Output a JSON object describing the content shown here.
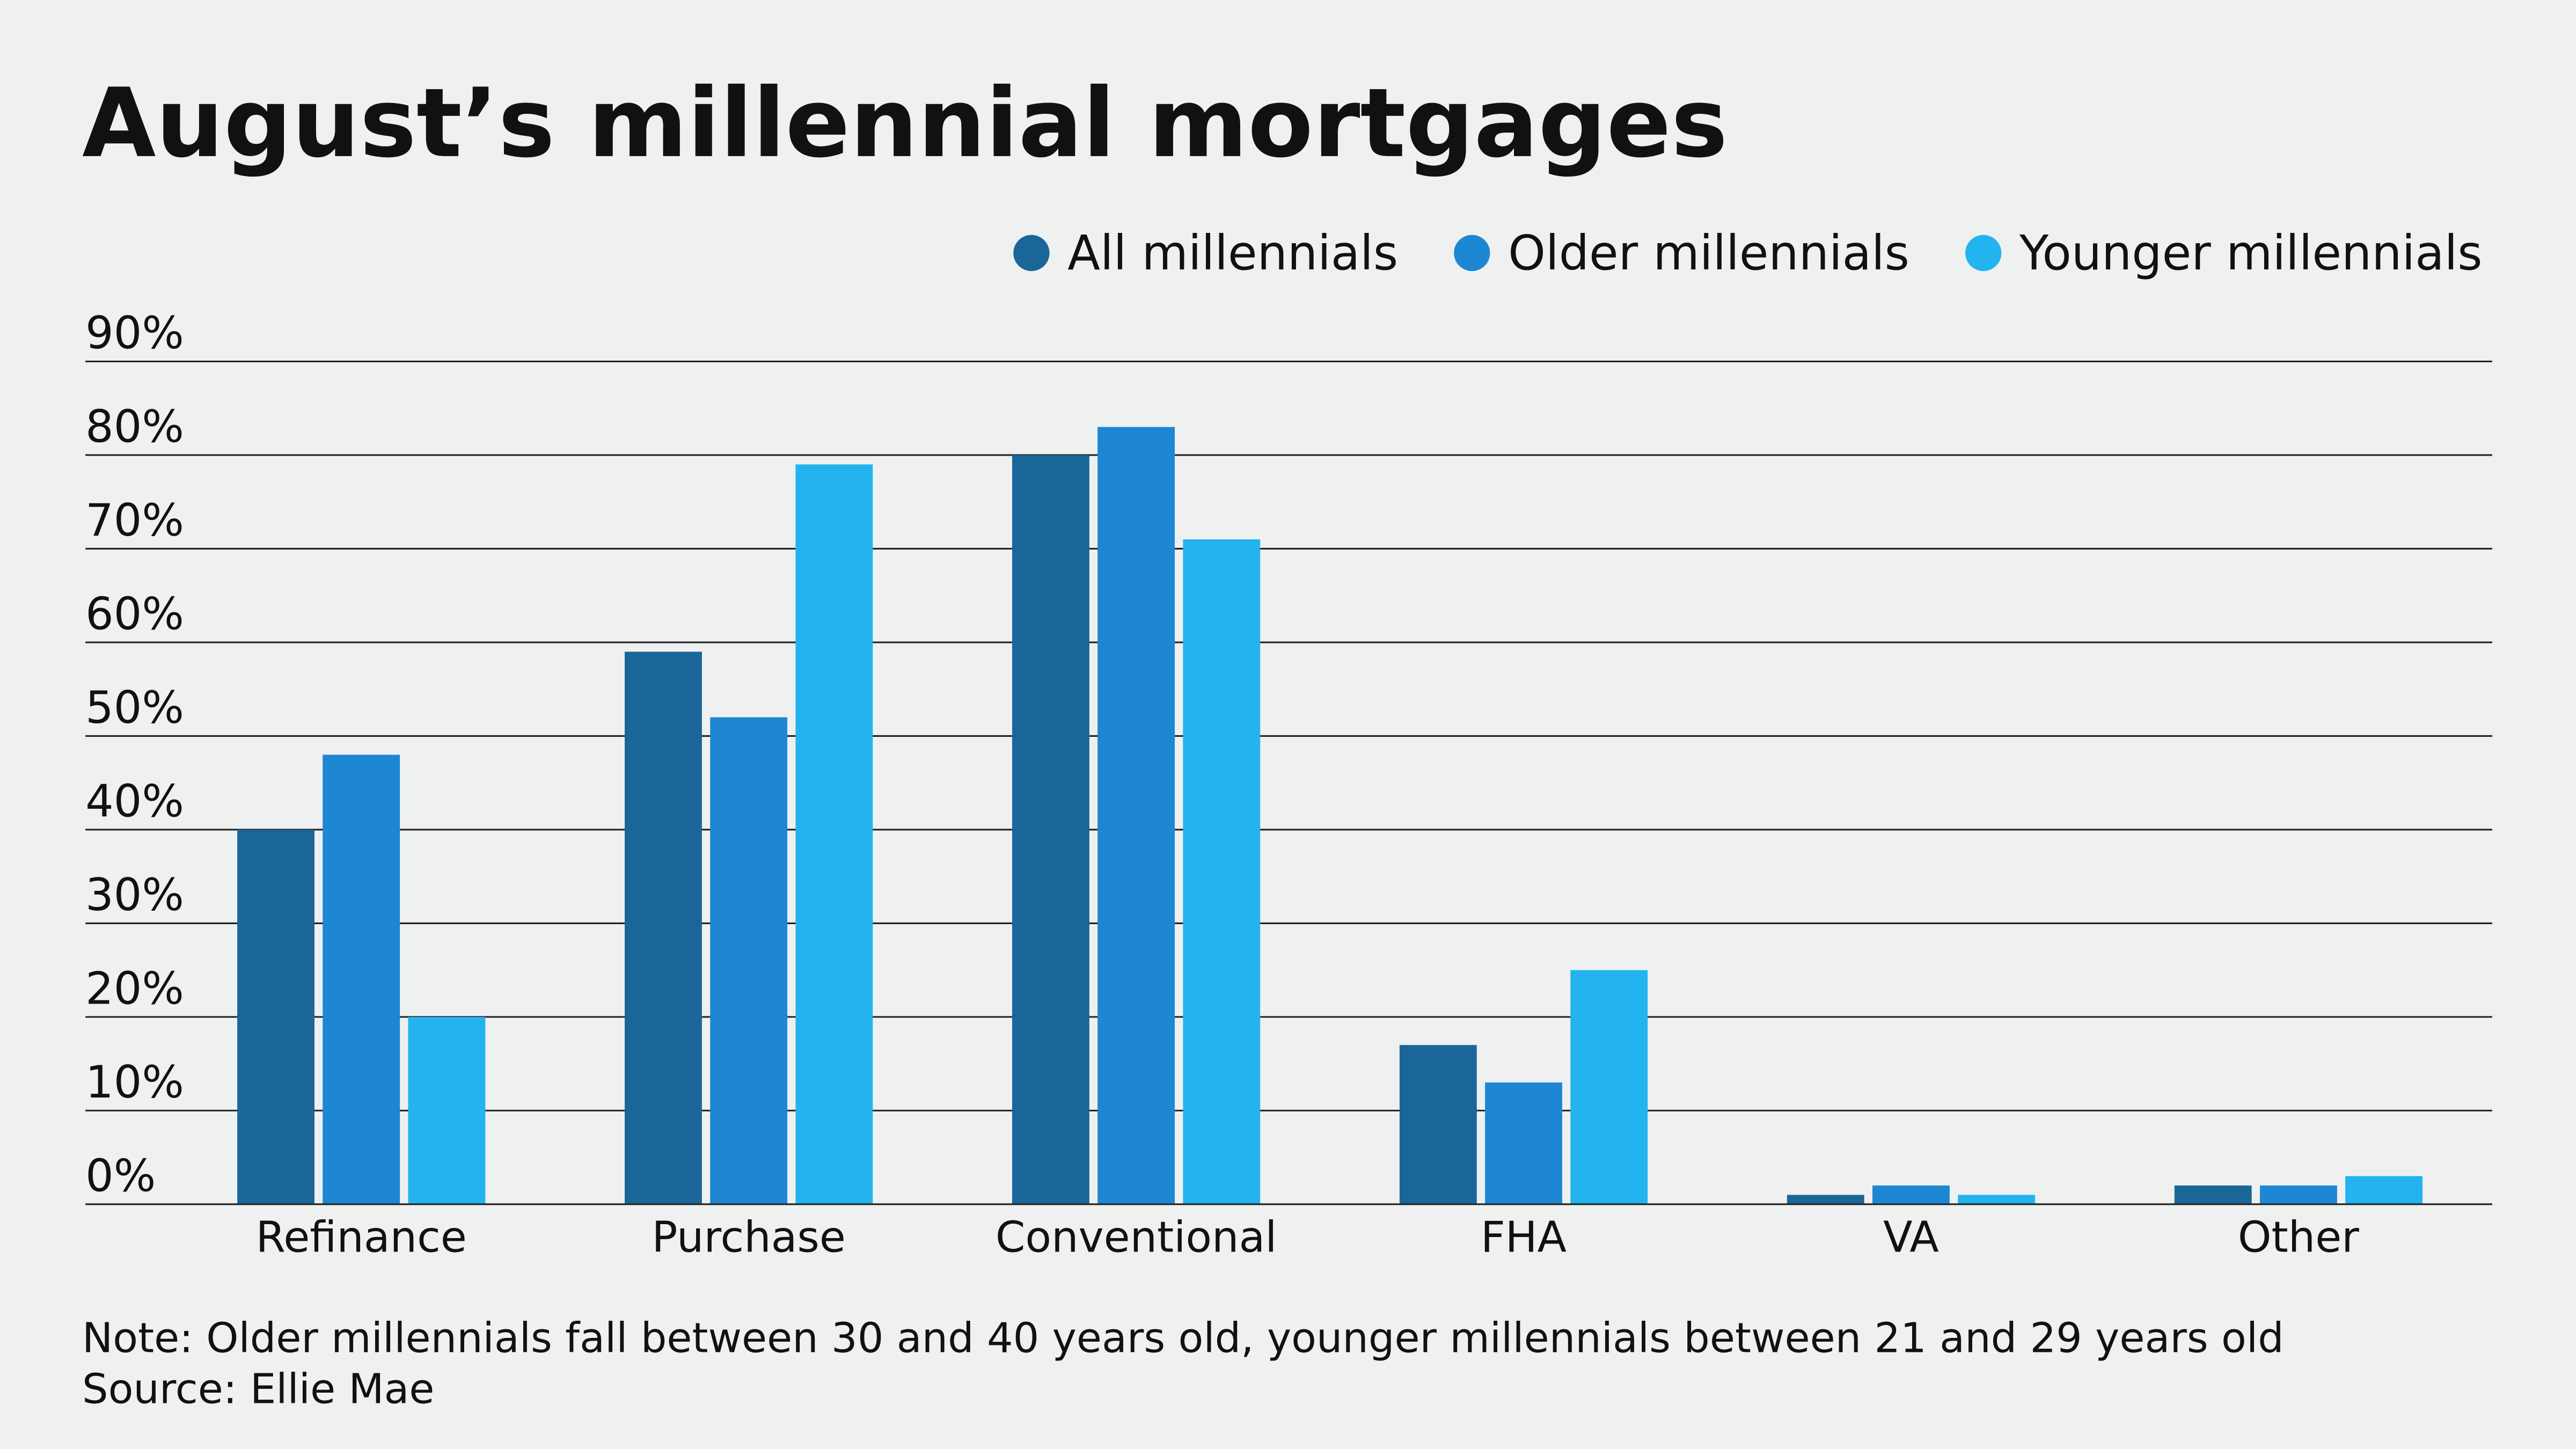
{
  "chart_data": {
    "type": "bar",
    "title": "August’s millennial mortgages",
    "categories": [
      "Refinance",
      "Purchase",
      "Conventional",
      "FHA",
      "VA",
      "Other"
    ],
    "series": [
      {
        "name": "All millennials",
        "color": "#1a6699",
        "values": [
          40,
          59,
          80,
          17,
          1,
          2
        ]
      },
      {
        "name": "Older millennials",
        "color": "#1d87d4",
        "values": [
          48,
          52,
          83,
          13,
          2,
          2
        ]
      },
      {
        "name": "Younger millennials",
        "color": "#23b4ef",
        "values": [
          20,
          79,
          71,
          25,
          1,
          3
        ]
      }
    ],
    "ylim": [
      0,
      90
    ],
    "yticks": [
      {
        "value": 0,
        "label": "0%"
      },
      {
        "value": 10,
        "label": "10%"
      },
      {
        "value": 20,
        "label": "20%"
      },
      {
        "value": 30,
        "label": "30%"
      },
      {
        "value": 40,
        "label": "40%"
      },
      {
        "value": 50,
        "label": "50%"
      },
      {
        "value": 60,
        "label": "60%"
      },
      {
        "value": 70,
        "label": "70%"
      },
      {
        "value": 80,
        "label": "80%"
      },
      {
        "value": 90,
        "label": "90%"
      }
    ],
    "grid": true,
    "legend": "top-right",
    "note": "Note: Older millennials fall between 30 and 40 years old, younger millennials between 21 and 29 years old",
    "source": "Source: Ellie Mae"
  }
}
